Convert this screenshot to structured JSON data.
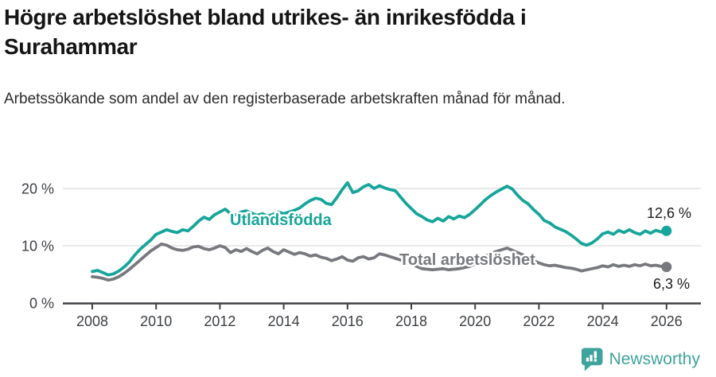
{
  "page": {
    "title": "Högre arbetslöshet bland utrikes- än inrikesfödda i Surahammar",
    "subtitle": "Arbetssökande som andel av den registerbaserade arbetskraften månad för månad."
  },
  "footer": {
    "brand": "Newsworthy",
    "brand_color": "#3fa39d",
    "logo_icon": "newsworthy-speech-bubble-bar-chart-icon"
  },
  "colors": {
    "foreign_born_line": "#16a59a",
    "total_line": "#77797e",
    "gridline": "#dcdcdc",
    "axis": "#3f4144",
    "text": "#1a1a1a"
  },
  "chart_data": {
    "type": "line",
    "title": "Högre arbetslöshet bland utrikes- än inrikesfödda i Surahammar",
    "subtitle": "Arbetssökande som andel av den registerbaserade arbetskraften månad för månad.",
    "grid": true,
    "x_axis": {
      "ticks": [
        2008,
        2010,
        2012,
        2014,
        2016,
        2018,
        2020,
        2022,
        2024,
        2026
      ]
    },
    "y_axis": {
      "ticks": [
        0,
        10,
        20
      ],
      "unit": "%",
      "range": [
        0,
        22
      ]
    },
    "x_start": 2008.0,
    "x_step_years": 0.1666667,
    "series": [
      {
        "name": "Utlandsfödda",
        "color": "#16a59a",
        "end_label": "12,6 %",
        "end_value": 12.6,
        "values": [
          5.5,
          5.7,
          5.3,
          4.9,
          5.1,
          5.6,
          6.3,
          7.2,
          8.4,
          9.4,
          10.2,
          11.0,
          12.0,
          12.4,
          12.8,
          12.5,
          12.3,
          12.8,
          12.6,
          13.4,
          14.3,
          15.0,
          14.6,
          15.4,
          15.9,
          16.4,
          15.6,
          15.4,
          15.9,
          16.1,
          15.7,
          15.3,
          15.6,
          15.2,
          15.5,
          15.9,
          15.6,
          15.9,
          16.2,
          16.6,
          17.3,
          17.9,
          18.3,
          18.1,
          17.4,
          17.2,
          18.4,
          19.8,
          21.0,
          19.3,
          19.6,
          20.3,
          20.7,
          20.0,
          20.5,
          20.1,
          19.8,
          19.6,
          18.5,
          17.4,
          16.5,
          15.6,
          15.1,
          14.5,
          14.2,
          14.8,
          14.3,
          15.1,
          14.7,
          15.2,
          14.9,
          15.5,
          16.3,
          17.2,
          18.1,
          18.8,
          19.4,
          19.9,
          20.4,
          19.9,
          18.8,
          17.9,
          17.3,
          16.3,
          15.5,
          14.4,
          14.0,
          13.3,
          12.9,
          12.5,
          11.9,
          11.2,
          10.4,
          10.1,
          10.5,
          11.2,
          12.1,
          12.4,
          12.0,
          12.7,
          12.3,
          12.8,
          12.3,
          12.0,
          12.6,
          12.2,
          12.7,
          12.4,
          12.6
        ]
      },
      {
        "name": "Total arbetslöshet",
        "color": "#77797e",
        "end_label": "6,3 %",
        "end_value": 6.3,
        "values": [
          4.6,
          4.5,
          4.3,
          4.0,
          4.2,
          4.6,
          5.2,
          5.9,
          6.7,
          7.5,
          8.3,
          9.1,
          9.7,
          10.3,
          10.1,
          9.6,
          9.3,
          9.2,
          9.4,
          9.8,
          9.9,
          9.5,
          9.3,
          9.6,
          10.0,
          9.7,
          8.8,
          9.3,
          9.0,
          9.5,
          9.0,
          8.6,
          9.2,
          9.6,
          9.0,
          8.6,
          9.3,
          8.9,
          8.5,
          8.8,
          8.6,
          8.2,
          8.4,
          8.0,
          7.8,
          7.4,
          7.7,
          8.1,
          7.5,
          7.3,
          7.9,
          8.1,
          7.7,
          7.9,
          8.6,
          8.4,
          8.1,
          7.8,
          7.5,
          7.1,
          6.8,
          6.4,
          6.0,
          5.9,
          5.8,
          5.9,
          6.0,
          5.8,
          5.9,
          6.0,
          6.2,
          6.4,
          6.8,
          7.4,
          8.2,
          8.7,
          9.0,
          9.3,
          9.6,
          9.2,
          8.8,
          8.4,
          7.9,
          7.4,
          7.0,
          6.7,
          6.5,
          6.6,
          6.4,
          6.2,
          6.1,
          5.9,
          5.6,
          5.8,
          6.0,
          6.2,
          6.5,
          6.3,
          6.7,
          6.4,
          6.6,
          6.4,
          6.7,
          6.5,
          6.8,
          6.5,
          6.6,
          6.4,
          6.3
        ]
      }
    ]
  }
}
